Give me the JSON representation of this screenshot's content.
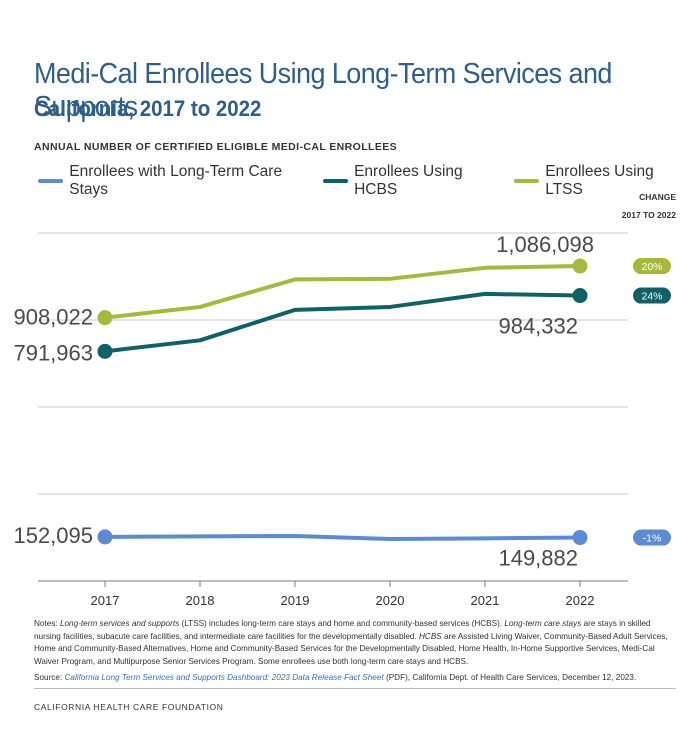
{
  "header": {
    "title": "Medi-Cal Enrollees Using Long-Term Services and Supports",
    "subtitle": "California, 2017 to 2022"
  },
  "chart_label": "ANNUAL NUMBER OF CERTIFIED ELIGIBLE MEDI-CAL ENROLLEES",
  "change_header": {
    "line1": "CHANGE",
    "line2": "2017 TO 2022"
  },
  "chart_data": {
    "type": "line",
    "title": "Medi-Cal Enrollees Using Long-Term Services and Supports",
    "subtitle": "California, 2017 to 2022",
    "ylabel": "ANNUAL NUMBER OF CERTIFIED ELIGIBLE MEDI-CAL ENROLLEES",
    "categories": [
      "2017",
      "2018",
      "2019",
      "2020",
      "2021",
      "2022"
    ],
    "ylim": [
      0,
      1200000
    ],
    "grid": "horizontal",
    "legend_position": "top",
    "series": [
      {
        "name": "Enrollees with Long-Term Care Stays",
        "color": "#5b8bd6",
        "values": [
          152095,
          154000,
          155000,
          145000,
          147000,
          149882
        ],
        "start_label": "152,095",
        "end_label": "149,882",
        "change": "-1%"
      },
      {
        "name": "Enrollees Using HCBS",
        "color": "#0e6266",
        "values": [
          791963,
          830000,
          935000,
          945000,
          990000,
          984332
        ],
        "start_label": "791,963",
        "end_label": "984,332",
        "change": "24%"
      },
      {
        "name": "Enrollees Using LTSS",
        "color": "#a6b93a",
        "values": [
          908022,
          945000,
          1040000,
          1042000,
          1080000,
          1086098
        ],
        "start_label": "908,022",
        "end_label": "1,086,098",
        "change": "20%"
      }
    ]
  },
  "notes": {
    "notes_label": "Notes:",
    "ltss_term": "Long-term services and supports",
    "ltss_def": " (LTSS) includes long-term care stays and home and community-based services (HCBS). ",
    "ltc_term": "Long-term care stays",
    "ltc_def": " are stays in skilled nursing facilities, subacute care facilities, and intermediate care facilities for the developmentally disabled. ",
    "hcbs_term": "HCBS",
    "hcbs_def": " are Assisted Living Waiver, Community-Based Adult Services, Home and Community-Based Alternatives, Home and Community-Based Services for the Developmentally Disabled, Home Health, In-Home Supportive Services, Medi-Cal Waiver Program, and Multipurpose Senior Services Program. Some enrollees use both long-term care stays and HCBS.",
    "source_label": "Source: ",
    "source_link": "California Long Term Services and Supports Dashboard: 2023 Data Release Fact Sheet",
    "source_rest": " (PDF), California Dept. of Health Care Services, December 12, 2023."
  },
  "footer": "CALIFORNIA HEALTH CARE FOUNDATION"
}
